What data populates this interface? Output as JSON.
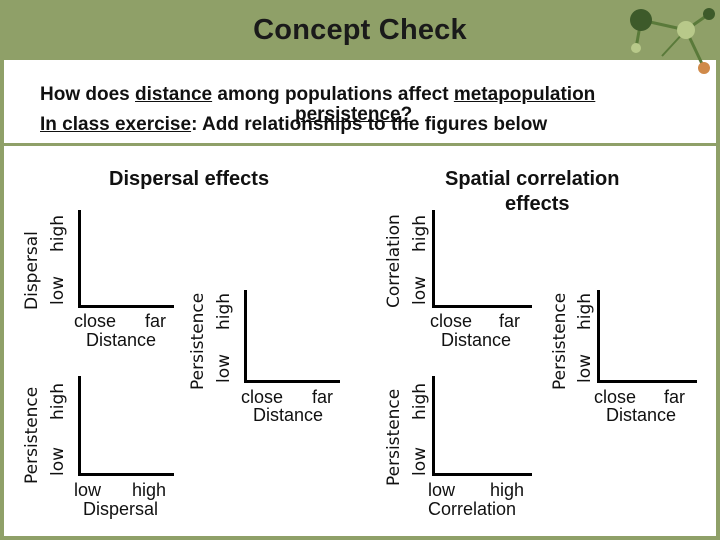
{
  "slide": {
    "title": "Concept Check",
    "question_parts": [
      "How does ",
      "distance",
      " among populations affect ",
      "metapopulation"
    ],
    "question_overlap": "persistence?",
    "exercise_parts": [
      "In class exercise",
      ":  Add ",
      "relationships",
      " to the figures below"
    ],
    "exercise_overlap_text": "relationships"
  },
  "panels": {
    "dispersal_heading": "Dispersal effects",
    "spatial_heading_line1": "Spatial correlation",
    "spatial_heading_line2": "effects",
    "p1": {
      "ylabel": "Dispersal",
      "ylow": "low",
      "yhigh": "high",
      "xclose": "close",
      "xfar": "far",
      "xlabel": "Distance"
    },
    "p2": {
      "ylabel": "Persistence",
      "ylow": "low",
      "yhigh": "high",
      "xclose": "close",
      "xfar": "far",
      "xlabel": "Distance"
    },
    "p3": {
      "ylabel": "Persistence",
      "ylow": "low",
      "yhigh": "high",
      "xlow": "low",
      "xhigh": "high",
      "xlabel": "Dispersal"
    },
    "p4": {
      "ylabel": "Correlation",
      "ylow": "low",
      "yhigh": "high",
      "xclose": "close",
      "xfar": "far",
      "xlabel": "Distance"
    },
    "p5": {
      "ylabel": "Persistence",
      "ylow": "low",
      "yhigh": "high",
      "xclose": "close",
      "xfar": "far",
      "xlabel": "Distance"
    },
    "p6": {
      "ylabel": "Persistence",
      "ylow": "low",
      "yhigh": "high",
      "xlow": "low",
      "xhigh": "high",
      "xlabel": "Correlation"
    }
  },
  "colors": {
    "header": "#8fa068",
    "molecule_line": "#5a7a3a",
    "molecule_node_dark": "#3d5a2a",
    "molecule_node_light": "#b8c98a",
    "molecule_node_orange": "#d08a4a"
  }
}
